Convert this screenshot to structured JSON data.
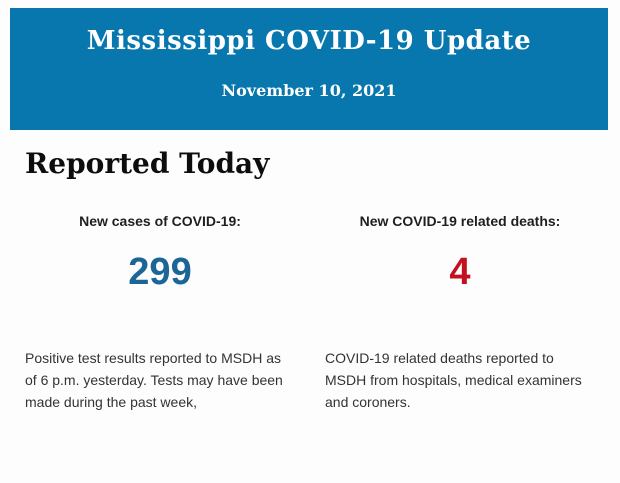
{
  "banner": {
    "title": "Mississippi COVID-19 Update",
    "date": "November 10, 2021",
    "background_color": "#0777ae",
    "text_color": "#ffffff"
  },
  "section": {
    "heading": "Reported Today"
  },
  "stats": [
    {
      "label": "New cases of COVID-19:",
      "value": "299",
      "value_color": "#1c6597",
      "description": "Positive test results reported to MSDH as of 6 p.m. yesterday. Tests may have been made during the past week,"
    },
    {
      "label": "New COVID-19 related deaths:",
      "value": "4",
      "value_color": "#c2121f",
      "description": "COVID-19 related deaths reported to MSDH from hospitals, medical examiners and coroners."
    }
  ]
}
